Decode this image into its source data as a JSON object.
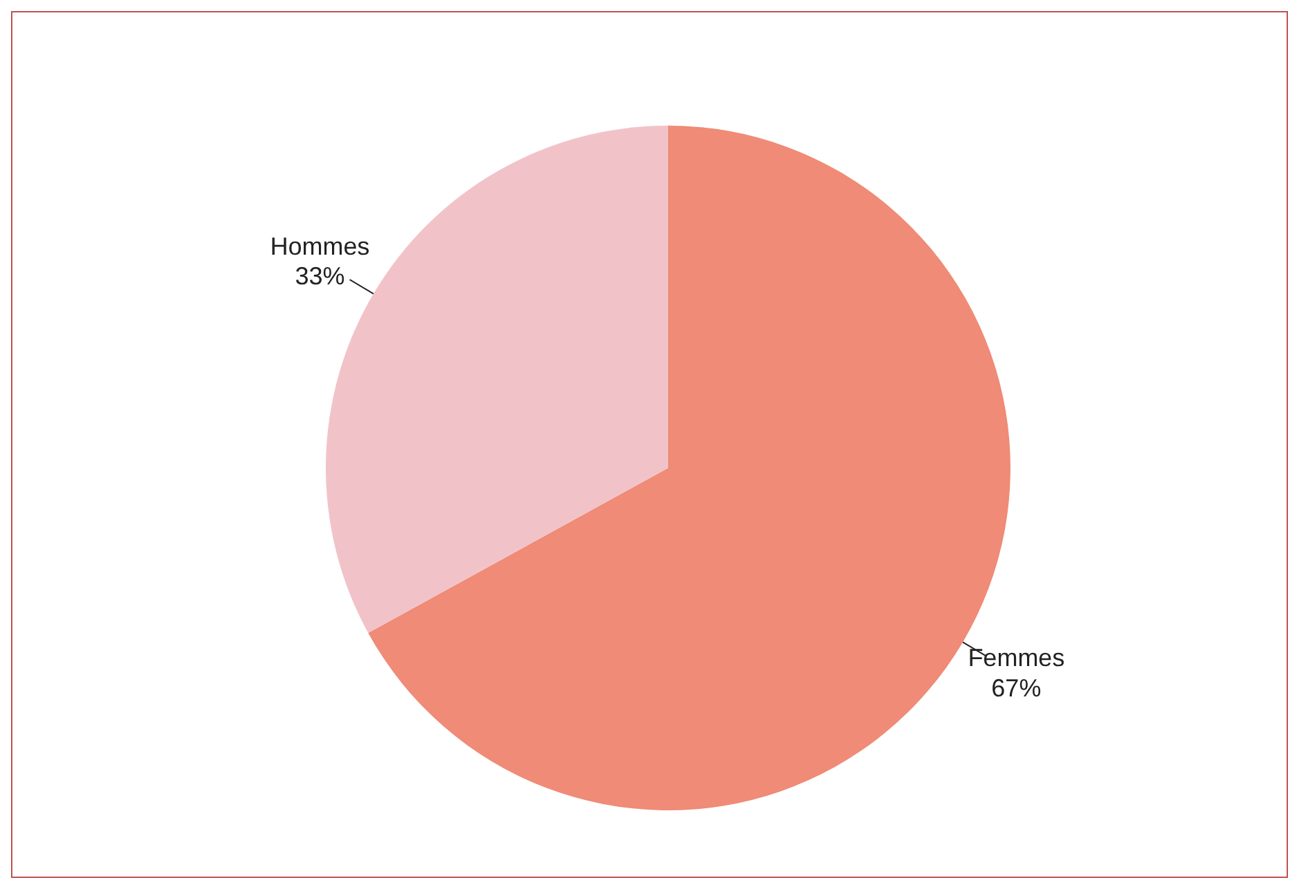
{
  "chart_data": {
    "type": "pie",
    "categories": [
      "Femmes",
      "Hommes"
    ],
    "values": [
      67,
      33
    ],
    "colors": [
      "#ef8b76",
      "#f1c3c9"
    ],
    "value_labels": [
      "67%",
      "33%"
    ],
    "legend": false
  }
}
